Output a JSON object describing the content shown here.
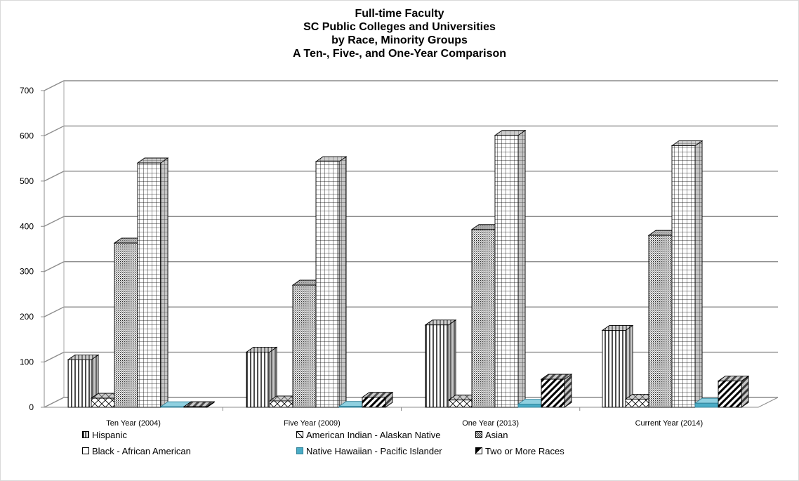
{
  "chart_data": {
    "type": "bar",
    "title_lines": [
      "Full-time Faculty",
      "SC Public Colleges and Universities",
      "by Race, Minority Groups",
      "A Ten-, Five-, and One-Year Comparison"
    ],
    "categories": [
      "Ten Year (2004)",
      "Five Year (2009)",
      "One Year (2013)",
      "Current Year (2014)"
    ],
    "series": [
      {
        "name": "Hispanic",
        "values": [
          105,
          122,
          182,
          170
        ],
        "pattern": "vertical-lines",
        "color": "#000000"
      },
      {
        "name": "American Indian - Alaskan Native",
        "values": [
          20,
          14,
          16,
          18
        ],
        "pattern": "cross-diagonal",
        "color": "#000000"
      },
      {
        "name": "Asian",
        "values": [
          363,
          270,
          393,
          380
        ],
        "pattern": "dots",
        "color": "#000000"
      },
      {
        "name": "Black - African American",
        "values": [
          540,
          543,
          601,
          578
        ],
        "pattern": "grid",
        "color": "#000000"
      },
      {
        "name": "Native Hawaiian - Pacific Islander",
        "values": [
          1,
          2,
          7,
          9
        ],
        "pattern": "solid",
        "color": "#4aacc6"
      },
      {
        "name": "Two or More Races",
        "values": [
          0,
          22,
          62,
          58
        ],
        "pattern": "wide-diagonal",
        "color": "#000000"
      }
    ],
    "ylim": [
      0,
      700
    ],
    "yticks": [
      "0",
      "100",
      "200",
      "300",
      "400",
      "500",
      "600",
      "700"
    ],
    "grid": true,
    "legend_position": "bottom",
    "xlabel": "",
    "ylabel": ""
  }
}
